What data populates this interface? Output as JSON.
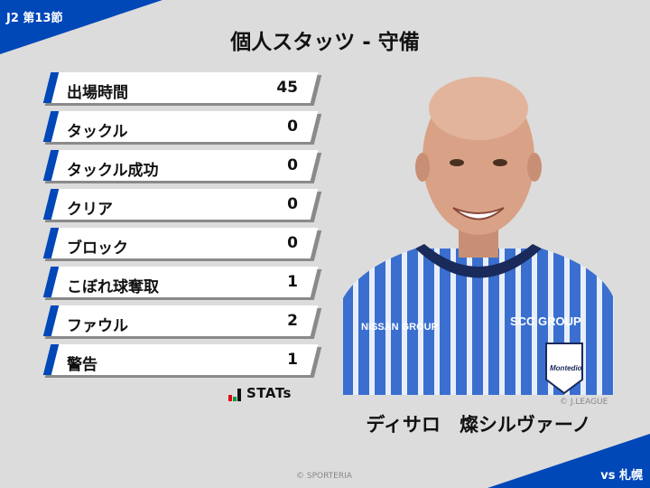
{
  "header": {
    "round": "J2 第13節",
    "title": "個人スタッツ - 守備"
  },
  "stats": [
    {
      "label": "出場時間",
      "value": "45"
    },
    {
      "label": "タックル",
      "value": "0"
    },
    {
      "label": "タックル成功",
      "value": "0"
    },
    {
      "label": "クリア",
      "value": "0"
    },
    {
      "label": "ブロック",
      "value": "0"
    },
    {
      "label": "こぼれ球奪取",
      "value": "1"
    },
    {
      "label": "ファウル",
      "value": "2"
    },
    {
      "label": "警告",
      "value": "1"
    }
  ],
  "stats_logo": "STATs",
  "player": {
    "name": "ディサロ　燦シルヴァーノ",
    "photo_credit": "© J.LEAGUE",
    "sponsor_1": "NISSAN GROUP",
    "sponsor_2": "SCC GROUP",
    "club": "Montedio"
  },
  "footer": {
    "opponent": "vs 札幌",
    "copyright": "© SPORTERIA"
  },
  "colors": {
    "accent": "#0047b8",
    "background": "#dcdcdc"
  }
}
